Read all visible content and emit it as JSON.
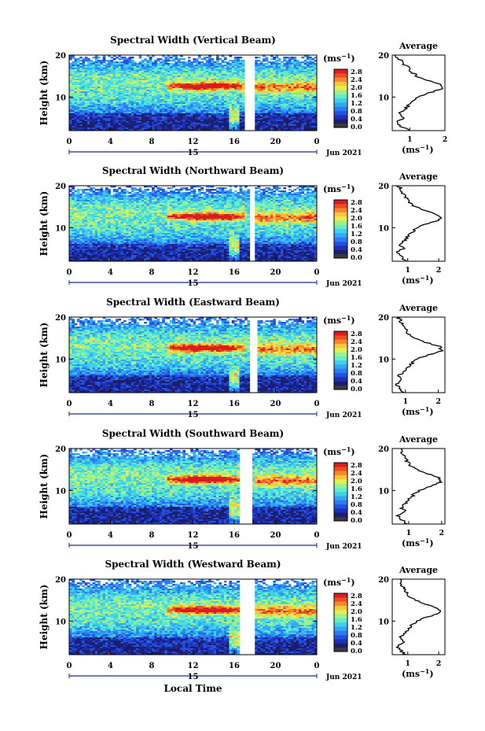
{
  "colors": {
    "scale": [
      "#1b1f6b",
      "#1f2fb8",
      "#2352e0",
      "#2b7cf2",
      "#34a6f5",
      "#3fd0ec",
      "#63ecc8",
      "#a3f08a",
      "#e2ee53",
      "#fbc63a",
      "#f7882b",
      "#ef4b25",
      "#d81d1f"
    ],
    "zero": "#3a3a3a",
    "white": "#ffffff"
  },
  "shared": {
    "ylabel": "Height (km)",
    "ytick_labels": [
      "20",
      "10"
    ],
    "xtick_labels": [
      "0",
      "4",
      "8",
      "12",
      "16",
      "20",
      "0"
    ],
    "date_marker": "15",
    "date_label": "Jun 2021",
    "colorbar_unit": "(ms",
    "colorbar_unit_sup": "−1",
    "colorbar_unit_close": ")",
    "colorbar_ticks": [
      "2.8",
      "2.4",
      "2.0",
      "1.6",
      "1.2",
      "0.8",
      "0.4",
      "0.0"
    ],
    "profile_title": "Average",
    "profile_xlabel": "(ms",
    "profile_xlabel_sup": "−1",
    "profile_xlabel_close": ")",
    "xlabel": "Local Time"
  },
  "chart_data": [
    {
      "type": "heatmap",
      "title": "Spectral Width (Vertical Beam)",
      "x_range": [
        0,
        24
      ],
      "y_range": [
        2,
        20
      ],
      "color_range": [
        0.0,
        2.8
      ],
      "gap_hours": [
        17.0,
        18.0
      ],
      "profile": {
        "title": "Average",
        "xticks": [
          "1",
          "2"
        ],
        "xlim": [
          0.5,
          2.0
        ],
        "heights": [
          2,
          3,
          4,
          5,
          6,
          7,
          8,
          9,
          10,
          11,
          12,
          13,
          14,
          15,
          16,
          17,
          18,
          19,
          20
        ],
        "values": [
          1.0,
          0.75,
          0.62,
          0.82,
          0.7,
          0.85,
          0.95,
          1.05,
          1.2,
          1.55,
          1.95,
          1.9,
          1.45,
          1.2,
          1.05,
          0.95,
          0.8,
          0.7,
          0.62
        ]
      }
    },
    {
      "type": "heatmap",
      "title": "Spectral Width (Northward Beam)",
      "x_range": [
        0,
        24
      ],
      "y_range": [
        2,
        20
      ],
      "color_range": [
        0.0,
        2.8
      ],
      "gap_hours": [
        17.5,
        18.0
      ],
      "profile": {
        "title": "Average",
        "xticks": [
          "1",
          "2"
        ],
        "xlim": [
          0.5,
          2.2
        ],
        "heights": [
          2,
          3,
          4,
          5,
          6,
          7,
          8,
          9,
          10,
          11,
          12,
          13,
          14,
          15,
          16,
          17,
          18,
          19,
          20
        ],
        "values": [
          0.95,
          0.8,
          0.65,
          0.85,
          0.75,
          0.9,
          1.0,
          1.15,
          1.3,
          1.65,
          2.05,
          2.0,
          1.55,
          1.25,
          1.05,
          0.95,
          0.85,
          0.8,
          0.7
        ]
      }
    },
    {
      "type": "heatmap",
      "title": "Spectral Width (Eastward Beam)",
      "x_range": [
        0,
        24
      ],
      "y_range": [
        2,
        20
      ],
      "color_range": [
        0.0,
        2.8
      ],
      "gap_hours": [
        17.5,
        18.2
      ],
      "profile": {
        "title": "Average",
        "xticks": [
          "1",
          "2"
        ],
        "xlim": [
          0.6,
          2.2
        ],
        "heights": [
          2,
          3,
          4,
          5,
          6,
          7,
          8,
          9,
          10,
          11,
          12,
          13,
          14,
          15,
          16,
          17,
          18,
          19,
          20
        ],
        "values": [
          0.95,
          0.8,
          0.72,
          0.9,
          0.8,
          0.95,
          1.05,
          1.2,
          1.35,
          1.7,
          2.1,
          2.05,
          1.6,
          1.3,
          1.1,
          1.0,
          0.9,
          0.85,
          0.8
        ]
      }
    },
    {
      "type": "heatmap",
      "title": "Spectral Width (Southward Beam)",
      "x_range": [
        0,
        24
      ],
      "y_range": [
        2,
        20
      ],
      "color_range": [
        0.0,
        2.8
      ],
      "gap_hours": [
        16.6,
        17.8
      ],
      "profile": {
        "title": "Average",
        "xticks": [
          "1",
          "2"
        ],
        "xlim": [
          0.5,
          2.1
        ],
        "heights": [
          2,
          3,
          4,
          5,
          6,
          7,
          8,
          9,
          10,
          11,
          12,
          13,
          14,
          15,
          16,
          17,
          18,
          19,
          20
        ],
        "values": [
          0.95,
          0.8,
          0.68,
          0.88,
          0.78,
          0.92,
          1.02,
          1.15,
          1.3,
          1.65,
          2.0,
          1.95,
          1.55,
          1.25,
          1.05,
          0.95,
          0.85,
          0.8,
          0.72
        ]
      }
    },
    {
      "type": "heatmap",
      "title": "Spectral Width (Westward Beam)",
      "x_range": [
        0,
        24
      ],
      "y_range": [
        2,
        20
      ],
      "color_range": [
        0.0,
        2.8
      ],
      "gap_hours": [
        16.6,
        18.0
      ],
      "profile": {
        "title": "Average",
        "xticks": [
          "1",
          "2"
        ],
        "xlim": [
          0.5,
          2.2
        ],
        "heights": [
          2,
          3,
          4,
          5,
          6,
          7,
          8,
          9,
          10,
          11,
          12,
          13,
          14,
          15,
          16,
          17,
          18,
          19,
          20
        ],
        "values": [
          0.95,
          0.78,
          0.66,
          0.86,
          0.76,
          0.9,
          1.0,
          1.12,
          1.3,
          1.65,
          2.05,
          2.0,
          1.55,
          1.25,
          1.05,
          0.95,
          0.85,
          0.8,
          0.72
        ]
      }
    }
  ]
}
